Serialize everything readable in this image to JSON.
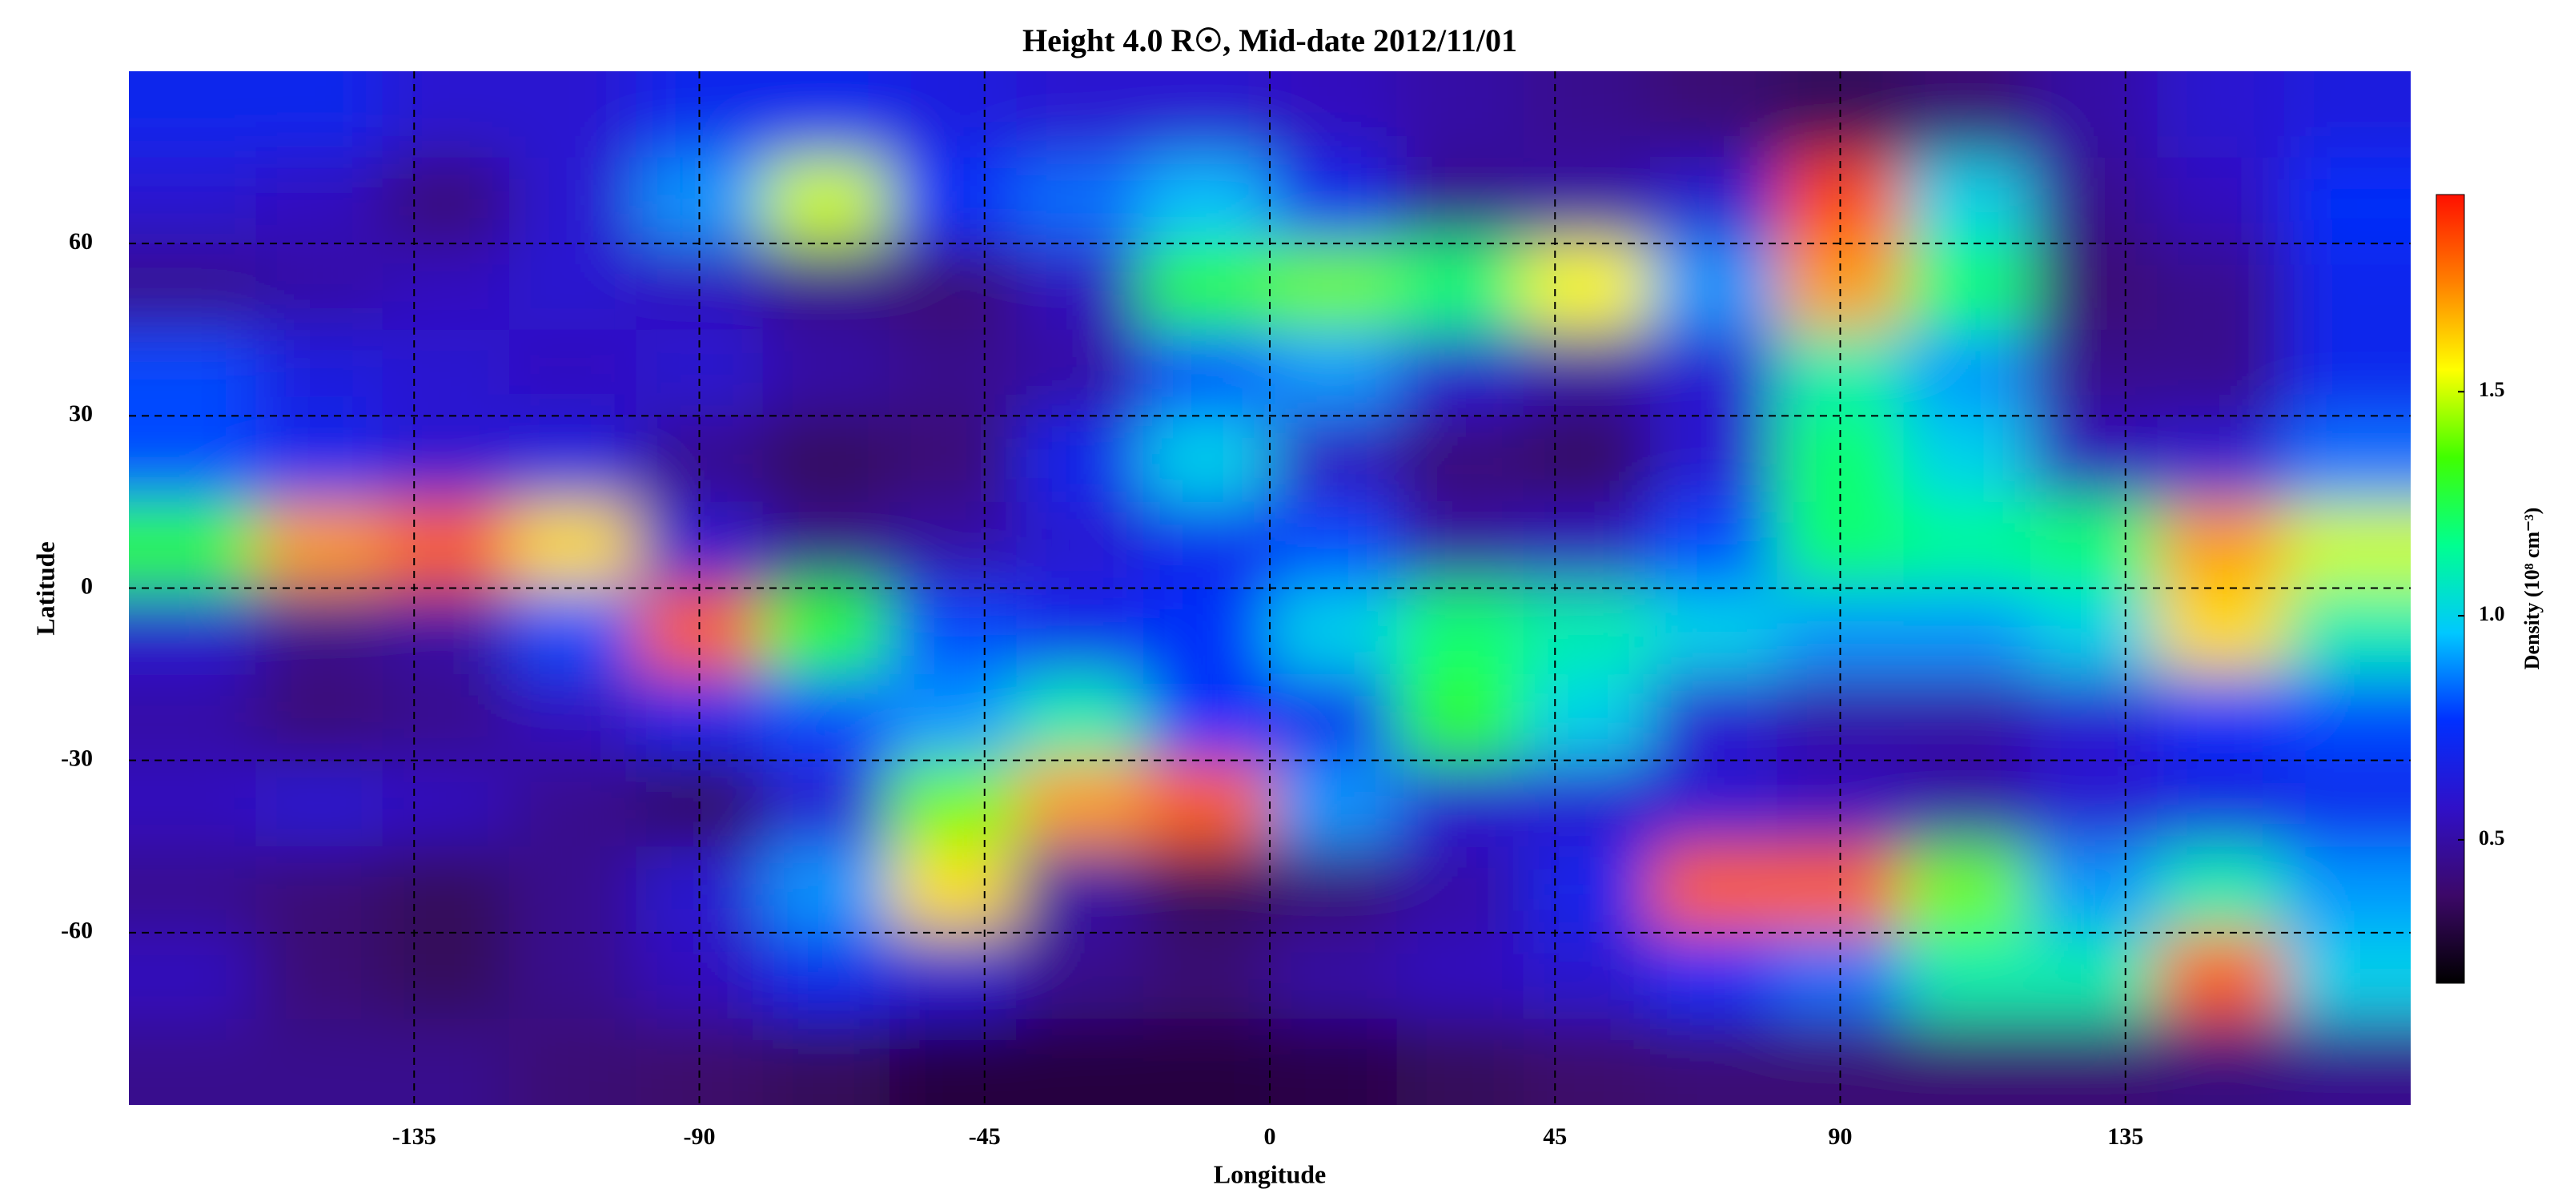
{
  "chart_data": {
    "type": "heatmap",
    "title": "Height 4.0 R☉, Mid-date 2012/11/01",
    "xlabel": "Longitude",
    "ylabel": "Latitude",
    "colorbar_label": "Density (10⁸ cm⁻³)",
    "x": [
      -170,
      -150,
      -130,
      -110,
      -90,
      -70,
      -50,
      -30,
      -10,
      10,
      30,
      50,
      70,
      90,
      110,
      130,
      150,
      170
    ],
    "y": [
      82.5,
      67.5,
      52.5,
      37.5,
      22.5,
      7.5,
      -7.5,
      -22.5,
      -37.5,
      -52.5,
      -67.5,
      -82.5
    ],
    "z": [
      [
        0.7,
        0.7,
        0.6,
        0.6,
        0.7,
        0.7,
        0.65,
        0.6,
        0.6,
        0.55,
        0.5,
        0.45,
        0.4,
        0.35,
        0.4,
        0.5,
        0.6,
        0.65
      ],
      [
        0.6,
        0.55,
        0.4,
        0.6,
        0.9,
        1.5,
        0.75,
        0.85,
        0.95,
        0.7,
        0.45,
        0.5,
        0.6,
        1.85,
        1.0,
        0.45,
        0.55,
        0.75
      ],
      [
        0.45,
        0.5,
        0.55,
        0.6,
        0.55,
        0.45,
        0.4,
        0.55,
        1.3,
        1.4,
        1.2,
        1.55,
        0.9,
        1.7,
        1.2,
        0.4,
        0.45,
        0.7
      ],
      [
        0.8,
        0.65,
        0.6,
        0.55,
        0.6,
        0.5,
        0.45,
        0.5,
        0.8,
        0.9,
        0.6,
        0.5,
        0.6,
        1.1,
        0.9,
        0.45,
        0.45,
        0.7
      ],
      [
        0.8,
        0.7,
        0.6,
        0.65,
        0.45,
        0.35,
        0.4,
        0.7,
        1.0,
        0.55,
        0.4,
        0.35,
        0.6,
        1.2,
        1.0,
        0.55,
        0.6,
        0.85
      ],
      [
        1.3,
        1.7,
        1.8,
        1.6,
        0.6,
        0.45,
        0.5,
        0.6,
        0.7,
        0.8,
        0.5,
        0.55,
        0.8,
        1.2,
        1.15,
        1.2,
        1.7,
        1.5
      ],
      [
        0.6,
        0.45,
        0.5,
        0.8,
        1.8,
        1.3,
        0.8,
        0.7,
        0.75,
        1.0,
        1.2,
        1.1,
        1.0,
        0.9,
        0.9,
        1.0,
        1.6,
        1.1
      ],
      [
        0.5,
        0.4,
        0.45,
        0.55,
        0.7,
        0.8,
        0.9,
        1.1,
        0.75,
        0.7,
        1.3,
        1.0,
        0.6,
        0.5,
        0.5,
        0.6,
        0.75,
        0.8
      ],
      [
        0.55,
        0.6,
        0.55,
        0.45,
        0.35,
        0.6,
        1.4,
        1.7,
        1.8,
        0.9,
        0.6,
        0.6,
        0.6,
        0.55,
        0.5,
        0.6,
        0.65,
        0.7
      ],
      [
        0.45,
        0.4,
        0.35,
        0.45,
        0.6,
        0.9,
        1.6,
        0.5,
        0.35,
        0.4,
        0.5,
        0.7,
        1.8,
        1.8,
        1.4,
        0.9,
        1.1,
        0.9
      ],
      [
        0.55,
        0.4,
        0.35,
        0.45,
        0.55,
        0.7,
        0.6,
        0.45,
        0.4,
        0.5,
        0.55,
        0.6,
        0.75,
        0.85,
        1.1,
        1.1,
        1.8,
        1.0
      ],
      [
        0.45,
        0.45,
        0.45,
        0.4,
        0.38,
        0.35,
        0.3,
        0.3,
        0.3,
        0.32,
        0.35,
        0.38,
        0.4,
        0.4,
        0.4,
        0.4,
        0.42,
        0.45
      ]
    ],
    "xlim": [
      -180,
      180
    ],
    "ylim": [
      -90,
      90
    ],
    "xticks": [
      -135,
      -90,
      -45,
      0,
      45,
      90,
      135
    ],
    "yticks": [
      -60,
      -30,
      0,
      30,
      60
    ],
    "zlim": [
      0.18,
      1.94
    ],
    "zticks": [
      0.5,
      {
        "value": 1,
        "label": "1.0"
      },
      1.5
    ],
    "colormap": [
      "#000000",
      "#3c0868",
      "#3010c8",
      "#0030ff",
      "#00c8ff",
      "#00ff90",
      "#40ff00",
      "#ffff00",
      "#ff8000",
      "#ff1000"
    ],
    "grid": true
  }
}
